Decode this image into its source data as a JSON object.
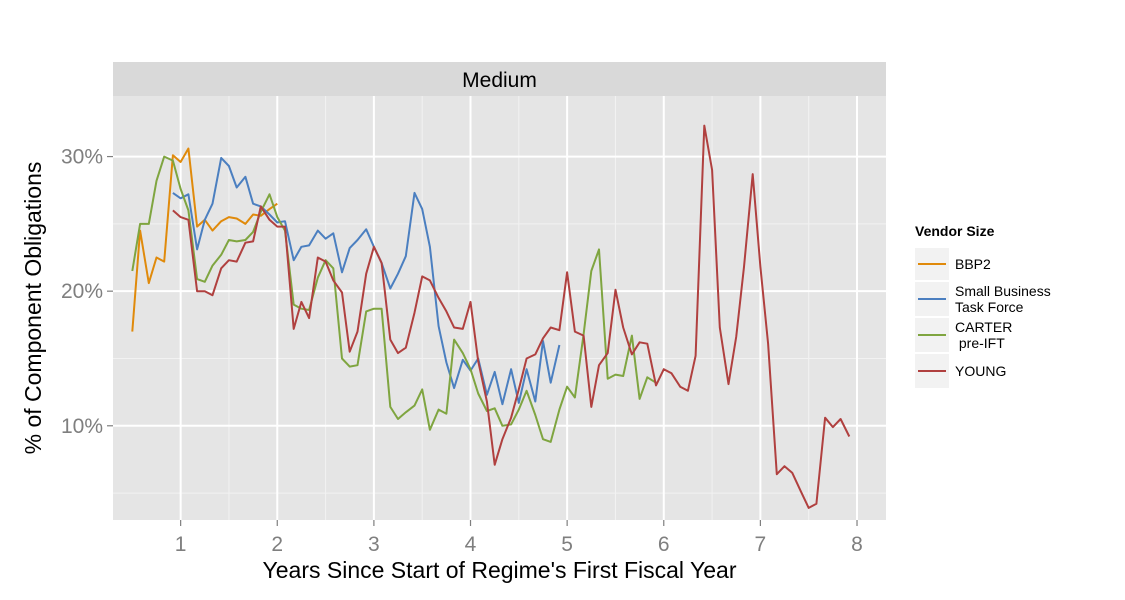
{
  "chart_data": {
    "type": "line",
    "facet_label": "Medium",
    "xlabel": "Years Since Start of Regime's First Fiscal Year",
    "ylabel": "% of Component Obligations",
    "xlim": [
      0.3,
      8.3
    ],
    "ylim": [
      3,
      34.5
    ],
    "x_ticks": [
      1,
      2,
      3,
      4,
      5,
      6,
      7,
      8
    ],
    "x_tick_labels": [
      "1",
      "2",
      "3",
      "4",
      "5",
      "6",
      "7",
      "8"
    ],
    "y_ticks": [
      10,
      20,
      30
    ],
    "y_tick_labels": [
      "10%",
      "20%",
      "30%"
    ],
    "grid": true,
    "legend": {
      "title": "Vendor Size",
      "position": "right"
    },
    "series": [
      {
        "name": "BBP2",
        "color": "#e08a0b",
        "x": [
          0.5,
          0.58,
          0.67,
          0.75,
          0.83,
          0.92,
          1.0,
          1.08,
          1.17,
          1.25,
          1.33,
          1.42,
          1.5,
          1.58,
          1.67,
          1.75,
          1.83,
          1.92,
          2.0
        ],
        "y": [
          17.0,
          24.5,
          20.6,
          22.5,
          22.2,
          30.1,
          29.6,
          30.6,
          24.8,
          25.3,
          24.5,
          25.2,
          25.5,
          25.4,
          25.0,
          25.7,
          25.6,
          26.1,
          26.5
        ]
      },
      {
        "name": "Small Business Task Force",
        "color": "#4b7fc0",
        "x": [
          0.92,
          1.0,
          1.08,
          1.17,
          1.25,
          1.33,
          1.42,
          1.5,
          1.58,
          1.67,
          1.75,
          1.83,
          1.92,
          2.0,
          2.08,
          2.17,
          2.25,
          2.33,
          2.42,
          2.5,
          2.58,
          2.67,
          2.75,
          2.83,
          2.92,
          3.0,
          3.08,
          3.17,
          3.25,
          3.33,
          3.42,
          3.5,
          3.58,
          3.67,
          3.75,
          3.83,
          3.92,
          4.0,
          4.08,
          4.17,
          4.25,
          4.33,
          4.42,
          4.5,
          4.58,
          4.67,
          4.75,
          4.83,
          4.92
        ],
        "y": [
          27.3,
          26.9,
          27.2,
          23.1,
          25.3,
          26.5,
          29.9,
          29.3,
          27.7,
          28.5,
          26.5,
          26.3,
          25.7,
          25.1,
          25.2,
          22.3,
          23.3,
          23.4,
          24.5,
          23.9,
          24.3,
          21.4,
          23.2,
          23.8,
          24.6,
          23.3,
          22.1,
          20.2,
          21.3,
          22.6,
          27.3,
          26.1,
          23.3,
          17.4,
          14.7,
          12.8,
          14.9,
          14.1,
          15.0,
          12.3,
          14.0,
          11.6,
          14.2,
          11.7,
          14.2,
          11.8,
          16.3,
          13.2,
          16.0
        ]
      },
      {
        "name": "CARTER pre-IFT",
        "color": "#7fa540",
        "x": [
          0.5,
          0.58,
          0.67,
          0.75,
          0.83,
          0.92,
          1.0,
          1.08,
          1.17,
          1.25,
          1.33,
          1.42,
          1.5,
          1.58,
          1.67,
          1.75,
          1.83,
          1.92,
          2.0,
          2.08,
          2.17,
          2.25,
          2.33,
          2.42,
          2.5,
          2.58,
          2.67,
          2.75,
          2.83,
          2.92,
          3.0,
          3.08,
          3.17,
          3.25,
          3.33,
          3.42,
          3.5,
          3.58,
          3.67,
          3.75,
          3.83,
          3.92,
          4.0,
          4.08,
          4.17,
          4.25,
          4.33,
          4.42,
          4.5,
          4.58,
          4.67,
          4.75,
          4.83,
          4.92,
          5.0,
          5.08,
          5.17,
          5.25,
          5.33,
          5.42,
          5.5,
          5.58,
          5.67,
          5.75,
          5.83,
          5.92
        ],
        "y": [
          21.5,
          25.0,
          25.0,
          28.2,
          30.0,
          29.7,
          27.6,
          26.0,
          20.9,
          20.7,
          21.9,
          22.7,
          23.8,
          23.7,
          23.8,
          24.4,
          25.9,
          27.2,
          25.5,
          24.5,
          19.0,
          18.7,
          18.6,
          21.0,
          22.3,
          21.7,
          15.0,
          14.4,
          14.5,
          18.5,
          18.7,
          18.7,
          11.4,
          10.5,
          11.0,
          11.5,
          12.7,
          9.7,
          11.2,
          10.9,
          16.4,
          15.4,
          14.2,
          12.4,
          11.1,
          11.3,
          10.0,
          10.1,
          11.2,
          12.6,
          10.8,
          9.0,
          8.8,
          11.2,
          12.9,
          12.1,
          16.8,
          21.5,
          23.1,
          13.5,
          13.8,
          13.7,
          16.7,
          12.0,
          13.6,
          13.2
        ]
      },
      {
        "name": "YOUNG",
        "color": "#b0403f",
        "x": [
          0.92,
          1.0,
          1.08,
          1.17,
          1.25,
          1.33,
          1.42,
          1.5,
          1.58,
          1.67,
          1.75,
          1.83,
          1.92,
          2.0,
          2.08,
          2.17,
          2.25,
          2.33,
          2.42,
          2.5,
          2.58,
          2.67,
          2.75,
          2.83,
          2.92,
          3.0,
          3.08,
          3.17,
          3.25,
          3.33,
          3.42,
          3.5,
          3.58,
          3.67,
          3.75,
          3.83,
          3.92,
          4.0,
          4.08,
          4.17,
          4.25,
          4.33,
          4.42,
          4.5,
          4.58,
          4.67,
          4.75,
          4.83,
          4.92,
          5.0,
          5.08,
          5.17,
          5.25,
          5.33,
          5.42,
          5.5,
          5.58,
          5.67,
          5.75,
          5.83,
          5.92,
          6.0,
          6.08,
          6.17,
          6.25,
          6.33,
          6.42,
          6.5,
          6.58,
          6.67,
          6.75,
          6.83,
          6.92,
          7.0,
          7.08,
          7.17,
          7.25,
          7.33,
          7.42,
          7.5,
          7.58,
          7.67,
          7.75,
          7.83,
          7.92
        ],
        "y": [
          26.0,
          25.5,
          25.3,
          20.0,
          20.0,
          19.7,
          21.7,
          22.3,
          22.2,
          23.6,
          23.7,
          26.3,
          25.3,
          24.8,
          24.8,
          17.2,
          19.2,
          18.0,
          22.5,
          22.2,
          20.8,
          19.9,
          15.5,
          17.0,
          21.3,
          23.3,
          22.1,
          16.4,
          15.4,
          15.8,
          18.4,
          21.1,
          20.8,
          19.5,
          18.5,
          17.3,
          17.2,
          19.2,
          14.8,
          11.8,
          7.1,
          9.0,
          10.6,
          12.7,
          15.0,
          15.3,
          16.5,
          17.3,
          17.1,
          21.4,
          17.0,
          16.7,
          11.4,
          14.5,
          15.4,
          20.1,
          17.3,
          15.3,
          16.2,
          16.1,
          13.0,
          14.2,
          13.9,
          12.9,
          12.6,
          15.2,
          32.3,
          29.0,
          17.3,
          13.1,
          16.6,
          21.8,
          28.7,
          21.8,
          16.1,
          6.4,
          7.0,
          6.5,
          5.1,
          3.9,
          4.2,
          10.6,
          9.9,
          10.5,
          9.2
        ]
      }
    ]
  }
}
